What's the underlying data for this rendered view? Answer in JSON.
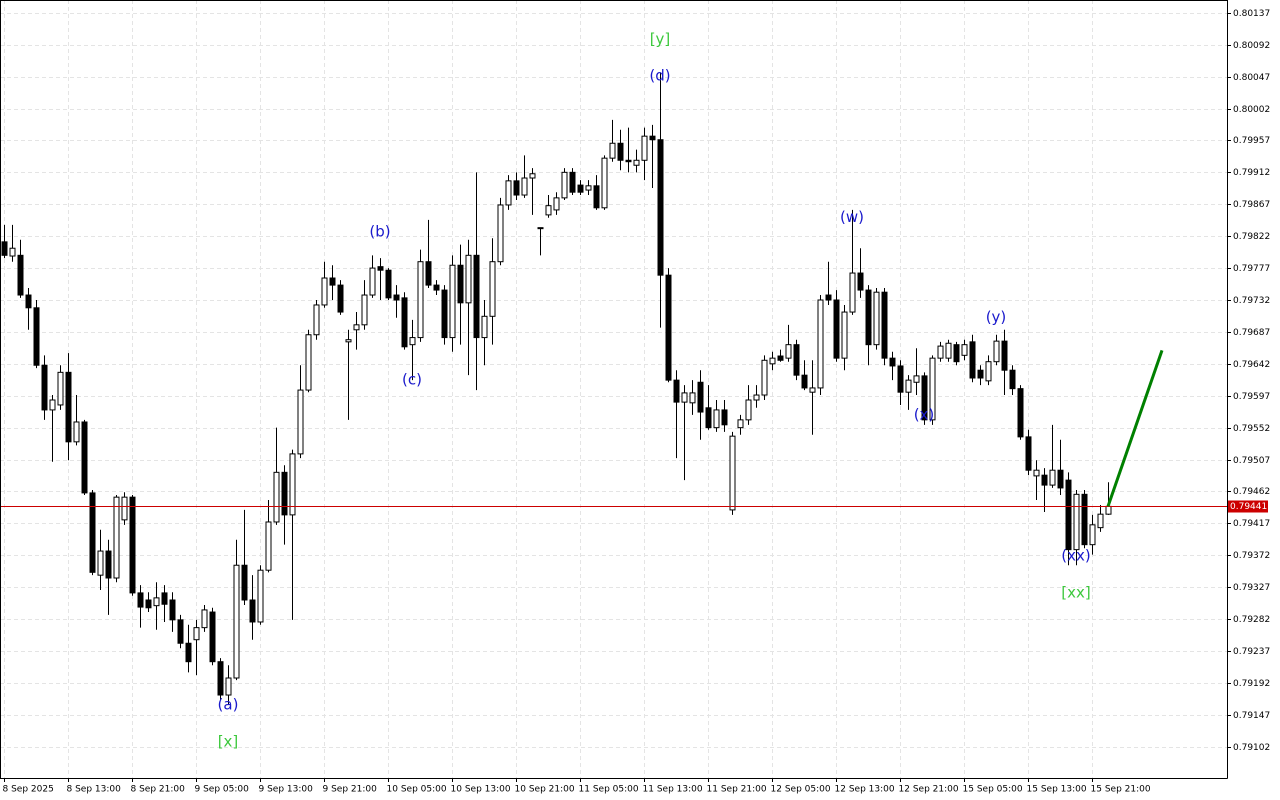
{
  "chart_data": {
    "type": "candlestick",
    "ylim": [
      0.79058,
      0.80155
    ],
    "yticks": [
      0.80137,
      0.80092,
      0.80047,
      0.80002,
      0.79957,
      0.79912,
      0.79867,
      0.79822,
      0.79777,
      0.79732,
      0.79687,
      0.79642,
      0.79597,
      0.79552,
      0.79507,
      0.79462,
      0.79417,
      0.79372,
      0.79327,
      0.79282,
      0.79237,
      0.79192,
      0.79147,
      0.79102
    ],
    "grid": true,
    "categories": [
      "8 Sep 2025",
      null,
      null,
      null,
      null,
      null,
      null,
      null,
      "8 Sep 13:00",
      null,
      null,
      null,
      null,
      null,
      null,
      null,
      "8 Sep 21:00",
      null,
      null,
      null,
      null,
      null,
      null,
      null,
      "9 Sep 05:00",
      null,
      null,
      null,
      null,
      null,
      null,
      null,
      "9 Sep 13:00",
      null,
      null,
      null,
      null,
      null,
      null,
      null,
      "9 Sep 21:00",
      null,
      null,
      null,
      null,
      null,
      null,
      null,
      "10 Sep 05:00",
      null,
      null,
      null,
      null,
      null,
      null,
      null,
      "10 Sep 13:00",
      null,
      null,
      null,
      null,
      null,
      null,
      null,
      "10 Sep 21:00",
      null,
      null,
      null,
      null,
      null,
      null,
      null,
      "11 Sep 05:00",
      null,
      null,
      null,
      null,
      null,
      null,
      null,
      "11 Sep 13:00",
      null,
      null,
      null,
      null,
      null,
      null,
      null,
      "11 Sep 21:00",
      null,
      null,
      null,
      null,
      null,
      null,
      null,
      "12 Sep 05:00",
      null,
      null,
      null,
      null,
      null,
      null,
      null,
      "12 Sep 13:00",
      null,
      null,
      null,
      null,
      null,
      null,
      null,
      "12 Sep 21:00",
      null,
      null,
      null,
      null,
      null,
      null,
      null,
      "15 Sep 05:00",
      null,
      null,
      null,
      null,
      null,
      null,
      null,
      "15 Sep 13:00",
      null,
      null,
      null,
      null,
      null,
      null,
      null,
      "15 Sep 21:00",
      null,
      null
    ],
    "series": [
      {
        "up_color": "#ffffff",
        "down_color": "#000000",
        "stroke": "#000000",
        "open": [
          0.79814,
          0.79794,
          0.79795,
          0.79739,
          0.79721,
          0.7964,
          0.79577,
          0.79584,
          0.7963,
          0.79532,
          0.7956,
          0.7946,
          0.79344,
          0.79378,
          0.7934,
          0.79422,
          0.79454,
          0.79319,
          0.79309,
          0.79301,
          0.79319,
          0.79309,
          0.79281,
          0.79248,
          0.79253,
          0.7927,
          0.79292,
          0.79222,
          0.79175,
          0.79199,
          0.79358,
          0.79309,
          0.79278,
          0.79351,
          0.79419,
          0.79489,
          0.79429,
          0.79515,
          0.79605,
          0.79683,
          0.79725,
          0.79763,
          0.79753,
          0.79673,
          0.7969,
          0.79697,
          0.79739,
          0.79779,
          0.79774,
          0.79739,
          0.79735,
          0.79669,
          0.79679,
          0.79786,
          0.79753,
          0.79746,
          0.79679,
          0.79781,
          0.79728,
          0.79795,
          0.79679,
          0.79709,
          0.79786,
          0.79866,
          0.799,
          0.7988,
          0.79904,
          0.79834,
          0.79852,
          0.79859,
          0.79876,
          0.79912,
          0.79894,
          0.79887,
          0.79893,
          0.79862,
          0.79932,
          0.79953,
          0.79929,
          0.79922,
          0.79929,
          0.79963,
          0.79958,
          0.79767,
          0.79619,
          0.79588,
          0.79587,
          0.79616,
          0.7958,
          0.79552,
          0.79577,
          0.79436,
          0.79552,
          0.79563,
          0.79591,
          0.79598,
          0.79642,
          0.79653,
          0.7965,
          0.79669,
          0.79626,
          0.79602,
          0.79608,
          0.79739,
          0.79732,
          0.7965,
          0.79715,
          0.7977,
          0.79746,
          0.79669,
          0.79743,
          0.7965,
          0.79639,
          0.79602,
          0.79616,
          0.79625,
          0.79563,
          0.7965,
          0.7965,
          0.79669,
          0.79654,
          0.79673,
          0.79633,
          0.79618,
          0.79645,
          0.79674,
          0.79633,
          0.79607,
          0.79539,
          0.79484,
          0.79485,
          0.79471,
          0.79492,
          0.79478,
          0.7938,
          0.79458,
          0.79387,
          0.79411,
          0.7943
        ],
        "high": [
          0.79838,
          0.79838,
          0.79817,
          0.79749,
          0.79732,
          0.79654,
          0.79598,
          0.7964,
          0.79657,
          0.79598,
          0.79563,
          0.79464,
          0.79408,
          0.79394,
          0.79457,
          0.79461,
          0.79457,
          0.7933,
          0.7932,
          0.79334,
          0.7933,
          0.7932,
          0.79288,
          0.79274,
          0.79281,
          0.79302,
          0.79298,
          0.79227,
          0.79217,
          0.79394,
          0.79436,
          0.79344,
          0.79358,
          0.7945,
          0.79552,
          0.79499,
          0.79521,
          0.7964,
          0.7969,
          0.79732,
          0.79786,
          0.79781,
          0.7976,
          0.7969,
          0.79715,
          0.7976,
          0.79795,
          0.79791,
          0.79777,
          0.79753,
          0.79743,
          0.79704,
          0.79803,
          0.79845,
          0.7976,
          0.79753,
          0.79795,
          0.7981,
          0.79817,
          0.79912,
          0.79732,
          0.79819,
          0.79876,
          0.79908,
          0.79912,
          0.79936,
          0.79918,
          0.79834,
          0.7988,
          0.79884,
          0.79918,
          0.79918,
          0.79901,
          0.79901,
          0.79908,
          0.79936,
          0.79986,
          0.79972,
          0.79975,
          0.79944,
          0.79975,
          0.79979,
          0.80053,
          0.79777,
          0.79633,
          0.79612,
          0.79619,
          0.79633,
          0.79612,
          0.79591,
          0.79591,
          0.79546,
          0.7957,
          0.79612,
          0.79612,
          0.79654,
          0.79659,
          0.79662,
          0.79697,
          0.79676,
          0.79647,
          0.79647,
          0.79739,
          0.79786,
          0.79746,
          0.79725,
          0.79859,
          0.79805,
          0.79753,
          0.79749,
          0.79749,
          0.79659,
          0.79647,
          0.79626,
          0.79664,
          0.7963,
          0.79654,
          0.79673,
          0.79676,
          0.79673,
          0.79676,
          0.79683,
          0.7964,
          0.79654,
          0.79683,
          0.7969,
          0.7964,
          0.79612,
          0.79549,
          0.79506,
          0.79495,
          0.79556,
          0.79535,
          0.79489,
          0.79464,
          0.79464,
          0.79429,
          0.79443,
          0.79475
        ],
        "low": [
          0.79791,
          0.79786,
          0.79735,
          0.7969,
          0.79636,
          0.79563,
          0.79504,
          0.79577,
          0.79506,
          0.79527,
          0.79457,
          0.79344,
          0.79323,
          0.79288,
          0.79334,
          0.79415,
          0.79315,
          0.7927,
          0.79292,
          0.79267,
          0.79278,
          0.79264,
          0.79241,
          0.79207,
          0.79203,
          0.79264,
          0.79217,
          0.79168,
          0.79161,
          0.79196,
          0.79302,
          0.79253,
          0.79274,
          0.79348,
          0.79415,
          0.79387,
          0.79281,
          0.79509,
          0.79602,
          0.79676,
          0.79721,
          0.79732,
          0.79711,
          0.79563,
          0.79662,
          0.7969,
          0.79735,
          0.79732,
          0.79732,
          0.79707,
          0.79662,
          0.79619,
          0.79673,
          0.79749,
          0.79739,
          0.79669,
          0.79659,
          0.79669,
          0.79626,
          0.79605,
          0.7964,
          0.79669,
          0.79781,
          0.79859,
          0.79873,
          0.79876,
          0.79852,
          0.79795,
          0.79848,
          0.79852,
          0.79873,
          0.7988,
          0.7988,
          0.7988,
          0.79859,
          0.79859,
          0.79927,
          0.79915,
          0.79912,
          0.79912,
          0.79901,
          0.7989,
          0.79693,
          0.79616,
          0.79509,
          0.79478,
          0.7957,
          0.79535,
          0.79549,
          0.79546,
          0.79546,
          0.79429,
          0.79542,
          0.79556,
          0.7958,
          0.79591,
          0.79633,
          0.79645,
          0.79645,
          0.79619,
          0.79605,
          0.79542,
          0.79598,
          0.79725,
          0.79645,
          0.79633,
          0.79711,
          0.79735,
          0.7964,
          0.79662,
          0.7964,
          0.79619,
          0.79584,
          0.79577,
          0.79598,
          0.79556,
          0.79556,
          0.79645,
          0.79645,
          0.7964,
          0.79647,
          0.79616,
          0.79612,
          0.79612,
          0.7964,
          0.79598,
          0.79598,
          0.79535,
          0.79485,
          0.7945,
          0.79433,
          0.79467,
          0.79457,
          0.79358,
          0.79358,
          0.79382,
          0.79373,
          0.79405,
          0.79429
        ],
        "close": [
          0.79795,
          0.79805,
          0.79739,
          0.79721,
          0.7964,
          0.79577,
          0.79591,
          0.7963,
          0.79532,
          0.7956,
          0.7946,
          0.79348,
          0.79378,
          0.7934,
          0.79454,
          0.79454,
          0.79319,
          0.79299,
          0.79298,
          0.79312,
          0.79303,
          0.79281,
          0.79248,
          0.79222,
          0.7927,
          0.79295,
          0.79222,
          0.79175,
          0.79199,
          0.79358,
          0.79309,
          0.79278,
          0.79351,
          0.79419,
          0.79489,
          0.79429,
          0.79515,
          0.79605,
          0.79683,
          0.79725,
          0.79763,
          0.79753,
          0.79715,
          0.79676,
          0.79697,
          0.79739,
          0.79777,
          0.79774,
          0.79735,
          0.79732,
          0.79666,
          0.79679,
          0.79786,
          0.79753,
          0.79746,
          0.79679,
          0.79781,
          0.79728,
          0.79795,
          0.79679,
          0.79709,
          0.79786,
          0.79866,
          0.799,
          0.7988,
          0.79904,
          0.7991,
          0.79834,
          0.79865,
          0.79876,
          0.79912,
          0.79884,
          0.79884,
          0.79893,
          0.79862,
          0.79932,
          0.79953,
          0.79929,
          0.79927,
          0.79929,
          0.79963,
          0.79958,
          0.79767,
          0.79619,
          0.79588,
          0.79601,
          0.79601,
          0.79574,
          0.79552,
          0.79577,
          0.79556,
          0.7954,
          0.79563,
          0.79591,
          0.79598,
          0.79647,
          0.7965,
          0.79647,
          0.79669,
          0.79626,
          0.79608,
          0.79608,
          0.79732,
          0.79732,
          0.7965,
          0.79715,
          0.7977,
          0.79746,
          0.79669,
          0.79743,
          0.7965,
          0.79639,
          0.79602,
          0.79619,
          0.79625,
          0.79563,
          0.7965,
          0.79667,
          0.79671,
          0.79645,
          0.79669,
          0.79622,
          0.79622,
          0.79645,
          0.79674,
          0.79633,
          0.79607,
          0.79539,
          0.79492,
          0.79492,
          0.79471,
          0.79492,
          0.79467,
          0.7938,
          0.79458,
          0.79387,
          0.79415,
          0.7943,
          0.79441
        ]
      }
    ],
    "current_price": {
      "value": 0.79441,
      "color": "#cc0000"
    },
    "annotations": [
      {
        "text": "[y]",
        "x": 82,
        "y": 0.80099,
        "color": "#3cc83c"
      },
      {
        "text": "(d)",
        "x": 82,
        "y": 0.80048,
        "color": "#1a1acc"
      },
      {
        "text": "(b)",
        "x": 47,
        "y": 0.79828,
        "color": "#1a1acc"
      },
      {
        "text": "(c)",
        "x": 51,
        "y": 0.79619,
        "color": "#1a1acc"
      },
      {
        "text": "(a)",
        "x": 28,
        "y": 0.79161,
        "color": "#1a1acc"
      },
      {
        "text": "[x]",
        "x": 28,
        "y": 0.79109,
        "color": "#3cc83c"
      },
      {
        "text": "(w)",
        "x": 106,
        "y": 0.79848,
        "color": "#1a1acc"
      },
      {
        "text": "(x)",
        "x": 115,
        "y": 0.7957,
        "color": "#1a1acc"
      },
      {
        "text": "(y)",
        "x": 124,
        "y": 0.79707,
        "color": "#1a1acc"
      },
      {
        "text": "(xx)",
        "x": 134,
        "y": 0.79371,
        "color": "#1a1acc"
      },
      {
        "text": "[xx]",
        "x": 134,
        "y": 0.79319,
        "color": "#3cc83c"
      }
    ],
    "projection": {
      "x": [
        138,
        144.75
      ],
      "y": [
        0.79441,
        0.79661
      ],
      "color": "#008000"
    }
  }
}
